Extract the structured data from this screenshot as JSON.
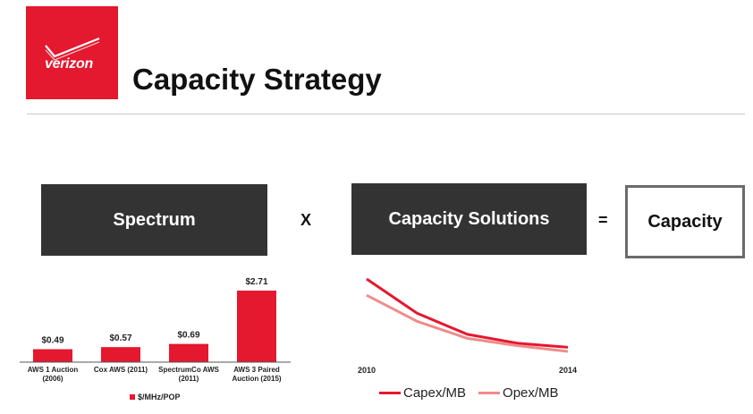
{
  "brand": {
    "logo_text": "verizon",
    "color": "#e4182e"
  },
  "title": "Capacity Strategy",
  "equation": {
    "spectrum": "Spectrum",
    "times": "X",
    "solutions": "Capacity Solutions",
    "equals": "=",
    "result": "Capacity"
  },
  "chart_data": [
    {
      "type": "bar",
      "categories": [
        [
          "AWS 1 Auction",
          "(2006)"
        ],
        [
          "Cox AWS (2011)"
        ],
        [
          "SpectrumCo AWS",
          "(2011)"
        ],
        [
          "AWS 3 Paired",
          "Auction (2015)"
        ]
      ],
      "values": [
        0.49,
        0.57,
        0.69,
        2.71
      ],
      "data_labels": [
        "$0.49",
        "$0.57",
        "$0.69",
        "$2.71"
      ],
      "series": [
        {
          "name": "$/MHz/POP",
          "values": [
            0.49,
            0.57,
            0.69,
            2.71
          ]
        }
      ],
      "legend": "$/MHz/POP",
      "color": "#e4182e",
      "ylim": [
        0,
        2.71
      ],
      "grid": false
    },
    {
      "type": "line",
      "x_tick_labels": [
        "2010",
        "2014"
      ],
      "x": [
        2010,
        2011,
        2012,
        2013,
        2014
      ],
      "series": [
        {
          "name": "Capex/MB",
          "values": [
            100,
            58,
            32,
            21,
            16
          ],
          "color": "#e4182e"
        },
        {
          "name": "Opex/MB",
          "values": [
            80,
            48,
            27,
            18,
            11
          ],
          "color": "#f08b8b"
        }
      ],
      "ylim": [
        0,
        100
      ],
      "grid": false,
      "legend_position": "bottom"
    }
  ]
}
